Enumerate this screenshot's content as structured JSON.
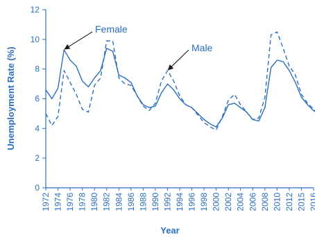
{
  "chart_data": {
    "type": "line",
    "xlabel": "Year",
    "ylabel": "Unemployment Rate (%)",
    "xlim": [
      1972,
      2016
    ],
    "ylim": [
      0,
      12
    ],
    "x_tick_labels": [
      "1972",
      "1974",
      "1976",
      "1978",
      "1980",
      "1982",
      "1984",
      "1986",
      "1988",
      "1990",
      "1992",
      "1994",
      "1996",
      "1998",
      "2000",
      "2002",
      "2004",
      "2006",
      "2008",
      "2010",
      "2012",
      "2015",
      "2016"
    ],
    "y_ticks": [
      0,
      2,
      4,
      6,
      8,
      10,
      12
    ],
    "grid": false,
    "annotations": [
      {
        "text": "Female",
        "series": "Female",
        "x": 1975,
        "y": 9.3
      },
      {
        "text": "Male",
        "series": "Male",
        "x": 1992,
        "y": 7.9
      }
    ],
    "series": [
      {
        "name": "Female",
        "style": "solid",
        "color": "#2a6ebd",
        "points": [
          [
            1972,
            6.6
          ],
          [
            1973,
            6.0
          ],
          [
            1974,
            6.7
          ],
          [
            1975,
            9.3
          ],
          [
            1976,
            8.6
          ],
          [
            1977,
            8.2
          ],
          [
            1978,
            7.2
          ],
          [
            1979,
            6.8
          ],
          [
            1980,
            7.4
          ],
          [
            1981,
            7.9
          ],
          [
            1982,
            9.4
          ],
          [
            1983,
            9.2
          ],
          [
            1984,
            7.6
          ],
          [
            1985,
            7.4
          ],
          [
            1986,
            7.1
          ],
          [
            1987,
            6.2
          ],
          [
            1988,
            5.6
          ],
          [
            1989,
            5.4
          ],
          [
            1990,
            5.5
          ],
          [
            1991,
            6.4
          ],
          [
            1992,
            7.0
          ],
          [
            1993,
            6.6
          ],
          [
            1994,
            6.0
          ],
          [
            1995,
            5.6
          ],
          [
            1996,
            5.4
          ],
          [
            1997,
            5.0
          ],
          [
            1998,
            4.6
          ],
          [
            1999,
            4.3
          ],
          [
            2000,
            4.1
          ],
          [
            2001,
            4.7
          ],
          [
            2002,
            5.6
          ],
          [
            2003,
            5.7
          ],
          [
            2004,
            5.4
          ],
          [
            2005,
            5.1
          ],
          [
            2006,
            4.6
          ],
          [
            2007,
            4.5
          ],
          [
            2008,
            5.4
          ],
          [
            2009,
            8.1
          ],
          [
            2010,
            8.6
          ],
          [
            2011,
            8.5
          ],
          [
            2012,
            7.9
          ],
          [
            2013,
            7.1
          ],
          [
            2014,
            6.1
          ],
          [
            2015,
            5.6
          ],
          [
            2016,
            5.2
          ],
          [
            2017,
            4.9
          ]
        ]
      },
      {
        "name": "Male",
        "style": "dashed",
        "color": "#2a6ebd",
        "points": [
          [
            1972,
            5.0
          ],
          [
            1973,
            4.2
          ],
          [
            1974,
            4.8
          ],
          [
            1975,
            7.9
          ],
          [
            1976,
            7.1
          ],
          [
            1977,
            6.3
          ],
          [
            1978,
            5.3
          ],
          [
            1979,
            5.1
          ],
          [
            1980,
            6.9
          ],
          [
            1981,
            7.4
          ],
          [
            1982,
            9.9
          ],
          [
            1983,
            9.9
          ],
          [
            1984,
            7.4
          ],
          [
            1985,
            7.0
          ],
          [
            1986,
            6.9
          ],
          [
            1987,
            6.2
          ],
          [
            1988,
            5.5
          ],
          [
            1989,
            5.2
          ],
          [
            1990,
            5.7
          ],
          [
            1991,
            7.2
          ],
          [
            1992,
            7.9
          ],
          [
            1993,
            7.2
          ],
          [
            1994,
            6.2
          ],
          [
            1995,
            5.6
          ],
          [
            1996,
            5.4
          ],
          [
            1997,
            4.9
          ],
          [
            1998,
            4.4
          ],
          [
            1999,
            4.1
          ],
          [
            2000,
            3.9
          ],
          [
            2001,
            4.8
          ],
          [
            2002,
            5.9
          ],
          [
            2003,
            6.3
          ],
          [
            2004,
            5.6
          ],
          [
            2005,
            5.1
          ],
          [
            2006,
            4.6
          ],
          [
            2007,
            4.7
          ],
          [
            2008,
            6.1
          ],
          [
            2009,
            10.3
          ],
          [
            2010,
            10.5
          ],
          [
            2011,
            9.4
          ],
          [
            2012,
            8.2
          ],
          [
            2013,
            7.6
          ],
          [
            2014,
            6.3
          ],
          [
            2015,
            5.7
          ],
          [
            2016,
            5.3
          ],
          [
            2017,
            4.8
          ]
        ]
      }
    ]
  }
}
